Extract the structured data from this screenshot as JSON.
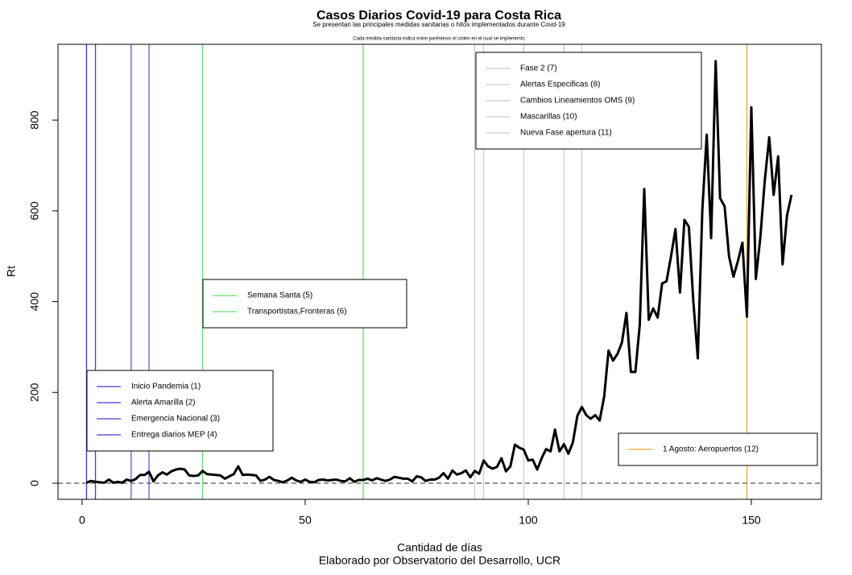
{
  "chart_data": {
    "type": "line",
    "title": "Casos Diarios Covid-19 para Costa Rica",
    "subtitle": "Se presentan las principales medidas sanitarias o hitos implementados durante Covd-19",
    "note": "Cada medida sanitaria indica entre paréntesis el orden en el cual se implemento",
    "xlabel": "Cantidad de días",
    "caption": "Elaborado por Observatorio del Desarrollo, UCR",
    "ylabel": "Rt",
    "xlim": [
      -5.4,
      165.7
    ],
    "ylim": [
      -35.5,
      967
    ],
    "xticks": [
      0,
      50,
      100,
      150
    ],
    "yticks": [
      0,
      200,
      400,
      600,
      800
    ],
    "color": "#000000",
    "x": [
      1,
      2,
      3,
      4,
      5,
      6,
      7,
      8,
      9,
      10,
      11,
      12,
      13,
      14,
      15,
      16,
      17,
      18,
      19,
      20,
      21,
      22,
      23,
      24,
      25,
      26,
      27,
      28,
      29,
      30,
      31,
      32,
      33,
      34,
      35,
      36,
      37,
      38,
      39,
      40,
      41,
      42,
      43,
      44,
      45,
      46,
      47,
      48,
      49,
      50,
      51,
      52,
      53,
      54,
      55,
      56,
      57,
      58,
      59,
      60,
      61,
      62,
      63,
      64,
      65,
      66,
      67,
      68,
      69,
      70,
      71,
      72,
      73,
      74,
      75,
      76,
      77,
      78,
      79,
      80,
      81,
      82,
      83,
      84,
      85,
      86,
      87,
      88,
      89,
      90,
      91,
      92,
      93,
      94,
      95,
      96,
      97,
      98,
      99,
      100,
      101,
      102,
      103,
      104,
      105,
      106,
      107,
      108,
      109,
      110,
      111,
      112,
      113,
      114,
      115,
      116,
      117,
      118,
      119,
      120,
      121,
      122,
      123,
      124,
      125,
      126,
      127,
      128,
      129,
      130,
      131,
      132,
      133,
      134,
      135,
      136,
      137,
      138,
      139,
      140,
      141,
      142,
      143,
      144,
      145,
      146,
      147,
      148,
      149,
      150,
      151,
      152,
      153,
      154,
      155,
      156,
      157,
      158,
      159
    ],
    "values": [
      1,
      5,
      3,
      2,
      1,
      8,
      1,
      3,
      1,
      8,
      5,
      9,
      18,
      18,
      25,
      4,
      17,
      24,
      19,
      26,
      30,
      32,
      30,
      17,
      16,
      17,
      27,
      20,
      19,
      18,
      17,
      10,
      15,
      20,
      37,
      18,
      19,
      18,
      17,
      5,
      8,
      14,
      7,
      5,
      2,
      6,
      12,
      6,
      3,
      8,
      3,
      2,
      7,
      8,
      6,
      7,
      8,
      5,
      4,
      11,
      3,
      7,
      7,
      10,
      6,
      11,
      8,
      5,
      8,
      14,
      12,
      10,
      10,
      4,
      15,
      13,
      5,
      8,
      8,
      12,
      22,
      10,
      28,
      19,
      22,
      28,
      13,
      27,
      21,
      50,
      37,
      32,
      36,
      55,
      26,
      37,
      85,
      78,
      74,
      50,
      52,
      30,
      55,
      75,
      70,
      118,
      70,
      86,
      65,
      90,
      148,
      168,
      150,
      142,
      150,
      138,
      190,
      292,
      270,
      285,
      310,
      375,
      245,
      245,
      350,
      648,
      360,
      385,
      365,
      440,
      445,
      500,
      560,
      420,
      580,
      565,
      400,
      275,
      600,
      768,
      540,
      930,
      628,
      610,
      500,
      455,
      490,
      530,
      367,
      828,
      450,
      540,
      665,
      762,
      635,
      720,
      482,
      590,
      635
    ],
    "hlines": [
      0
    ],
    "vlines": [
      {
        "x": 1,
        "color": "#3a3ad6"
      },
      {
        "x": 3,
        "color": "#3a3ad6"
      },
      {
        "x": 11,
        "color": "#5a5ae8"
      },
      {
        "x": 15,
        "color": "#5a5ae8"
      },
      {
        "x": 27,
        "color": "#66e066"
      },
      {
        "x": 63,
        "color": "#66e066"
      },
      {
        "x": 88,
        "color": "#cccccc"
      },
      {
        "x": 90,
        "color": "#cccccc"
      },
      {
        "x": 99,
        "color": "#cccccc"
      },
      {
        "x": 108,
        "color": "#cccccc"
      },
      {
        "x": 112,
        "color": "#cccccc"
      },
      {
        "x": 149,
        "color": "#f0a830"
      }
    ],
    "legends": [
      {
        "color": "#3a3ad6",
        "labels": [
          "Inicio Pandemia (1)",
          "Alerta Amarilla (2)",
          "Emergencia Nacional (3)",
          "Entrega diarios MEP (4)"
        ]
      },
      {
        "color": "#66e066",
        "labels": [
          "Semana Santa (5)",
          "Transportistas,Fronteras (6)"
        ]
      },
      {
        "color": "#cccccc",
        "labels": [
          "Fase 2 (7)",
          "Alertas Especificas (8)",
          "Cambios Lineamientos OMS (9)",
          "Mascarillas (10)",
          "Nueva Fase apertura (11)"
        ]
      },
      {
        "color": "#f0a830",
        "labels": [
          "1 Agosto: Aeropuertos (12)"
        ]
      }
    ]
  }
}
